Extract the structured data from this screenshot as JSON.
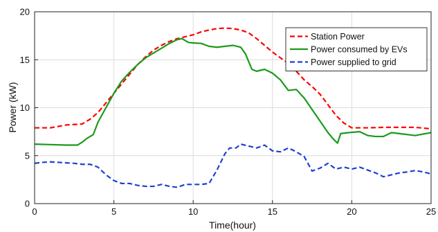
{
  "chart_data": {
    "type": "line",
    "title": "",
    "xlabel": "Time(hour)",
    "ylabel": "Power (kW)",
    "xlim": [
      0,
      25
    ],
    "ylim": [
      0,
      20
    ],
    "xticks": [
      0,
      5,
      10,
      15,
      20,
      25
    ],
    "yticks": [
      0,
      5,
      10,
      15,
      20
    ],
    "grid": true,
    "legend_position": "top-right",
    "series": [
      {
        "name": "Station Power",
        "color": "#ff0000",
        "style": "dashed",
        "x": [
          0,
          1,
          2,
          3,
          3.5,
          4,
          4.5,
          5,
          5.5,
          6,
          6.5,
          7,
          7.5,
          8,
          8.5,
          9,
          9.5,
          10,
          10.5,
          11,
          11.5,
          12,
          12.5,
          13,
          13.5,
          14,
          14.5,
          15,
          15.5,
          16,
          16.5,
          17,
          17.5,
          18,
          18.5,
          19,
          19.5,
          20,
          21,
          22,
          23,
          24,
          25
        ],
        "y": [
          7.9,
          7.9,
          8.2,
          8.3,
          8.8,
          9.5,
          10.5,
          11.5,
          12.5,
          13.5,
          14.5,
          15.3,
          16.0,
          16.5,
          16.9,
          17.2,
          17.4,
          17.6,
          17.9,
          18.1,
          18.25,
          18.3,
          18.25,
          18.1,
          17.8,
          17.2,
          16.5,
          15.8,
          15.2,
          14.6,
          13.8,
          12.9,
          12.2,
          11.4,
          10.3,
          9.2,
          8.4,
          7.9,
          7.9,
          7.95,
          7.95,
          7.95,
          7.8
        ]
      },
      {
        "name": "Power consumed by EVs",
        "color": "#1a9a1a",
        "style": "solid",
        "x": [
          0,
          1,
          2,
          2.7,
          3,
          3.3,
          3.7,
          4,
          4.5,
          5,
          5.5,
          6,
          6.5,
          7,
          7.5,
          8,
          8.5,
          9,
          9.3,
          9.7,
          10,
          10.5,
          11,
          11.5,
          12,
          12.5,
          13,
          13.3,
          13.7,
          14,
          14.5,
          15,
          15.5,
          16,
          16.5,
          17,
          17.5,
          18,
          18.5,
          18.8,
          19.1,
          19.3,
          19.8,
          20.5,
          21,
          21.5,
          22,
          22.5,
          23,
          24,
          25
        ],
        "y": [
          6.2,
          6.15,
          6.1,
          6.1,
          6.4,
          6.8,
          7.2,
          8.5,
          10.0,
          11.5,
          12.8,
          13.7,
          14.5,
          15.2,
          15.7,
          16.2,
          16.7,
          17.1,
          17.2,
          16.8,
          16.75,
          16.7,
          16.4,
          16.3,
          16.4,
          16.5,
          16.3,
          15.6,
          14.0,
          13.8,
          14.0,
          13.6,
          12.9,
          11.8,
          11.9,
          11.0,
          9.8,
          8.6,
          7.4,
          6.8,
          6.3,
          7.3,
          7.4,
          7.5,
          7.1,
          7.0,
          7.0,
          7.4,
          7.3,
          7.1,
          7.4
        ]
      },
      {
        "name": "Power supplied to grid",
        "color": "#1f3fd0",
        "style": "dashed",
        "x": [
          0,
          0.5,
          1,
          1.5,
          2,
          2.5,
          3,
          3.5,
          4,
          4.5,
          5,
          5.5,
          6,
          6.5,
          7,
          7.5,
          8,
          8.5,
          9,
          9.5,
          10,
          10.5,
          11,
          11.5,
          12,
          12.3,
          12.7,
          13,
          13.5,
          14,
          14.5,
          15,
          15.5,
          16,
          16.5,
          17,
          17.5,
          18,
          18.5,
          19,
          19.5,
          20,
          20.5,
          21,
          21.5,
          22,
          22.5,
          23,
          23.5,
          24,
          24.5,
          25
        ],
        "y": [
          4.2,
          4.3,
          4.35,
          4.3,
          4.25,
          4.2,
          4.1,
          4.1,
          3.8,
          3.0,
          2.4,
          2.1,
          2.1,
          1.9,
          1.8,
          1.8,
          2.0,
          1.8,
          1.7,
          2.0,
          2.0,
          2.0,
          2.1,
          3.5,
          5.2,
          5.8,
          5.8,
          6.2,
          6.0,
          5.8,
          6.1,
          5.5,
          5.4,
          5.8,
          5.4,
          4.9,
          3.4,
          3.7,
          4.2,
          3.6,
          3.8,
          3.6,
          3.8,
          3.5,
          3.2,
          2.8,
          3.0,
          3.2,
          3.3,
          3.45,
          3.3,
          3.1
        ]
      }
    ]
  }
}
